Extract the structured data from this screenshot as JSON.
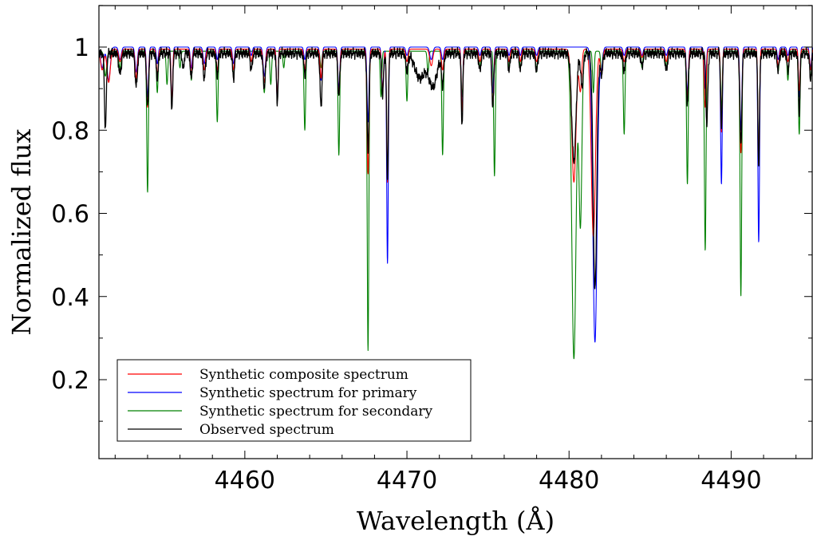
{
  "chart_data": {
    "type": "line",
    "title": "",
    "xlabel": "Wavelength (Å)",
    "ylabel": "Normalized flux",
    "xlim": [
      4451,
      4495
    ],
    "ylim": [
      0.02,
      1.11
    ],
    "x_ticks": [
      4460,
      4470,
      4480,
      4490
    ],
    "x_tick_labels": [
      "4460",
      "4470",
      "4480",
      "4490"
    ],
    "y_ticks": [
      0.2,
      0.4,
      0.6,
      0.8,
      1.0
    ],
    "y_tick_labels": [
      "0.2",
      "0.4",
      "0.6",
      "0.8",
      "1"
    ],
    "grid": false,
    "legend_position": "lower-left",
    "series": [
      {
        "name": "Synthetic composite spectrum",
        "color": "#ff0000",
        "continuum": 0.995,
        "lines": [
          [
            4451.2,
            0.05,
            0.1
          ],
          [
            4451.6,
            0.08,
            0.1
          ],
          [
            4452.3,
            0.03,
            0.08
          ],
          [
            4453.3,
            0.07,
            0.07
          ],
          [
            4454.0,
            0.14,
            0.06
          ],
          [
            4454.6,
            0.06,
            0.06
          ],
          [
            4455.5,
            0.13,
            0.05
          ],
          [
            4456.7,
            0.06,
            0.06
          ],
          [
            4457.5,
            0.05,
            0.07
          ],
          [
            4458.3,
            0.05,
            0.06
          ],
          [
            4459.3,
            0.05,
            0.06
          ],
          [
            4460.4,
            0.03,
            0.06
          ],
          [
            4461.2,
            0.08,
            0.07
          ],
          [
            4462.0,
            0.12,
            0.05
          ],
          [
            4463.7,
            0.05,
            0.06
          ],
          [
            4464.7,
            0.07,
            0.06
          ],
          [
            4465.8,
            0.11,
            0.06
          ],
          [
            4467.6,
            0.3,
            0.06
          ],
          [
            4468.5,
            0.1,
            0.06
          ],
          [
            4468.8,
            0.32,
            0.05
          ],
          [
            4470.0,
            0.03,
            0.07
          ],
          [
            4471.5,
            0.04,
            0.09
          ],
          [
            4472.2,
            0.05,
            0.07
          ],
          [
            4473.4,
            0.15,
            0.05
          ],
          [
            4474.5,
            0.03,
            0.07
          ],
          [
            4475.3,
            0.13,
            0.06
          ],
          [
            4476.3,
            0.03,
            0.06
          ],
          [
            4477.0,
            0.03,
            0.06
          ],
          [
            4478.0,
            0.03,
            0.07
          ],
          [
            4480.3,
            0.32,
            0.13
          ],
          [
            4480.7,
            0.1,
            0.08
          ],
          [
            4481.5,
            0.45,
            0.13
          ],
          [
            4482.0,
            0.06,
            0.08
          ],
          [
            4483.4,
            0.03,
            0.07
          ],
          [
            4484.5,
            0.02,
            0.07
          ],
          [
            4486.0,
            0.03,
            0.07
          ],
          [
            4487.3,
            0.12,
            0.06
          ],
          [
            4488.4,
            0.14,
            0.06
          ],
          [
            4489.4,
            0.2,
            0.05
          ],
          [
            4490.6,
            0.25,
            0.06
          ],
          [
            4491.7,
            0.28,
            0.05
          ],
          [
            4492.9,
            0.04,
            0.06
          ],
          [
            4493.5,
            0.03,
            0.06
          ],
          [
            4494.2,
            0.1,
            0.05
          ],
          [
            4494.9,
            0.05,
            0.06
          ]
        ]
      },
      {
        "name": "Synthetic spectrum for primary",
        "color": "#0000ff",
        "continuum": 1.0,
        "lines": [
          [
            4451.2,
            0.05,
            0.1
          ],
          [
            4451.6,
            0.08,
            0.1
          ],
          [
            4452.3,
            0.03,
            0.08
          ],
          [
            4453.3,
            0.06,
            0.07
          ],
          [
            4454.0,
            0.12,
            0.06
          ],
          [
            4454.6,
            0.04,
            0.06
          ],
          [
            4455.5,
            0.14,
            0.05
          ],
          [
            4456.7,
            0.05,
            0.06
          ],
          [
            4457.5,
            0.04,
            0.07
          ],
          [
            4458.3,
            0.03,
            0.06
          ],
          [
            4459.3,
            0.04,
            0.06
          ],
          [
            4460.4,
            0.02,
            0.06
          ],
          [
            4461.2,
            0.07,
            0.07
          ],
          [
            4462.0,
            0.13,
            0.05
          ],
          [
            4463.7,
            0.03,
            0.06
          ],
          [
            4464.7,
            0.08,
            0.06
          ],
          [
            4465.8,
            0.1,
            0.06
          ],
          [
            4467.6,
            0.18,
            0.06
          ],
          [
            4468.5,
            0.1,
            0.06
          ],
          [
            4468.8,
            0.52,
            0.05
          ],
          [
            4470.0,
            0.02,
            0.07
          ],
          [
            4471.5,
            0.03,
            0.09
          ],
          [
            4472.2,
            0.03,
            0.07
          ],
          [
            4473.4,
            0.15,
            0.05
          ],
          [
            4474.5,
            0.02,
            0.07
          ],
          [
            4475.3,
            0.11,
            0.06
          ],
          [
            4476.3,
            0.02,
            0.06
          ],
          [
            4477.0,
            0.02,
            0.06
          ],
          [
            4478.0,
            0.02,
            0.07
          ],
          [
            4481.6,
            0.71,
            0.13
          ],
          [
            4482.0,
            0.05,
            0.08
          ],
          [
            4483.4,
            0.02,
            0.07
          ],
          [
            4484.5,
            0.02,
            0.07
          ],
          [
            4486.0,
            0.02,
            0.07
          ],
          [
            4487.3,
            0.11,
            0.06
          ],
          [
            4488.4,
            0.1,
            0.06
          ],
          [
            4489.4,
            0.33,
            0.05
          ],
          [
            4490.6,
            0.2,
            0.06
          ],
          [
            4491.7,
            0.47,
            0.05
          ],
          [
            4492.9,
            0.03,
            0.06
          ],
          [
            4493.5,
            0.02,
            0.06
          ],
          [
            4494.2,
            0.12,
            0.05
          ],
          [
            4494.9,
            0.05,
            0.06
          ]
        ]
      },
      {
        "name": "Synthetic spectrum for secondary",
        "color": "#008000",
        "continuum": 0.99,
        "lines": [
          [
            4451.4,
            0.06,
            0.08
          ],
          [
            4452.3,
            0.04,
            0.07
          ],
          [
            4453.3,
            0.07,
            0.06
          ],
          [
            4454.0,
            0.34,
            0.05
          ],
          [
            4454.6,
            0.1,
            0.05
          ],
          [
            4455.2,
            0.08,
            0.05
          ],
          [
            4456.0,
            0.04,
            0.05
          ],
          [
            4456.7,
            0.07,
            0.05
          ],
          [
            4458.3,
            0.17,
            0.05
          ],
          [
            4459.3,
            0.06,
            0.05
          ],
          [
            4461.2,
            0.1,
            0.06
          ],
          [
            4461.6,
            0.08,
            0.05
          ],
          [
            4462.4,
            0.04,
            0.05
          ],
          [
            4463.7,
            0.19,
            0.05
          ],
          [
            4464.7,
            0.04,
            0.05
          ],
          [
            4465.8,
            0.25,
            0.05
          ],
          [
            4467.6,
            0.72,
            0.05
          ],
          [
            4468.4,
            0.11,
            0.05
          ],
          [
            4470.0,
            0.12,
            0.05
          ],
          [
            4471.3,
            0.05,
            0.05
          ],
          [
            4472.2,
            0.25,
            0.05
          ],
          [
            4473.4,
            0.11,
            0.05
          ],
          [
            4474.5,
            0.04,
            0.05
          ],
          [
            4475.4,
            0.3,
            0.05
          ],
          [
            4476.3,
            0.04,
            0.05
          ],
          [
            4477.0,
            0.04,
            0.05
          ],
          [
            4478.0,
            0.05,
            0.05
          ],
          [
            4480.3,
            0.74,
            0.13
          ],
          [
            4480.7,
            0.42,
            0.09
          ],
          [
            4481.5,
            0.1,
            0.05
          ],
          [
            4482.0,
            0.05,
            0.05
          ],
          [
            4483.4,
            0.2,
            0.05
          ],
          [
            4484.5,
            0.04,
            0.05
          ],
          [
            4486.0,
            0.04,
            0.05
          ],
          [
            4487.3,
            0.32,
            0.05
          ],
          [
            4488.4,
            0.48,
            0.05
          ],
          [
            4489.4,
            0.14,
            0.05
          ],
          [
            4490.6,
            0.59,
            0.05
          ],
          [
            4491.7,
            0.26,
            0.05
          ],
          [
            4492.9,
            0.05,
            0.05
          ],
          [
            4493.5,
            0.07,
            0.05
          ],
          [
            4494.2,
            0.2,
            0.05
          ],
          [
            4494.9,
            0.07,
            0.05
          ]
        ]
      },
      {
        "name": "Observed spectrum",
        "color": "#000000",
        "continuum": 0.985,
        "lines": [
          [
            4451.4,
            0.18,
            0.06
          ],
          [
            4452.3,
            0.05,
            0.08
          ],
          [
            4453.3,
            0.08,
            0.07
          ],
          [
            4454.0,
            0.13,
            0.06
          ],
          [
            4454.6,
            0.06,
            0.06
          ],
          [
            4455.5,
            0.14,
            0.05
          ],
          [
            4456.2,
            0.04,
            0.05
          ],
          [
            4456.7,
            0.06,
            0.06
          ],
          [
            4457.5,
            0.06,
            0.07
          ],
          [
            4458.3,
            0.05,
            0.06
          ],
          [
            4459.3,
            0.06,
            0.06
          ],
          [
            4460.4,
            0.04,
            0.06
          ],
          [
            4461.2,
            0.08,
            0.07
          ],
          [
            4462.0,
            0.12,
            0.05
          ],
          [
            4463.7,
            0.05,
            0.06
          ],
          [
            4464.7,
            0.13,
            0.06
          ],
          [
            4465.8,
            0.1,
            0.06
          ],
          [
            4467.6,
            0.23,
            0.06
          ],
          [
            4468.5,
            0.1,
            0.06
          ],
          [
            4468.8,
            0.3,
            0.05
          ],
          [
            4470.0,
            0.04,
            0.07
          ],
          [
            4470.8,
            0.06,
            0.3
          ],
          [
            4471.6,
            0.08,
            0.25
          ],
          [
            4472.2,
            0.07,
            0.07
          ],
          [
            4473.4,
            0.17,
            0.05
          ],
          [
            4474.5,
            0.04,
            0.07
          ],
          [
            4475.3,
            0.13,
            0.06
          ],
          [
            4476.3,
            0.04,
            0.06
          ],
          [
            4477.0,
            0.04,
            0.06
          ],
          [
            4478.0,
            0.04,
            0.07
          ],
          [
            4480.3,
            0.26,
            0.13
          ],
          [
            4480.8,
            0.08,
            0.08
          ],
          [
            4481.6,
            0.57,
            0.11
          ],
          [
            4482.0,
            0.05,
            0.08
          ],
          [
            4483.4,
            0.04,
            0.07
          ],
          [
            4484.5,
            0.03,
            0.07
          ],
          [
            4486.0,
            0.04,
            0.07
          ],
          [
            4487.3,
            0.12,
            0.06
          ],
          [
            4488.5,
            0.17,
            0.06
          ],
          [
            4489.4,
            0.18,
            0.05
          ],
          [
            4490.6,
            0.22,
            0.06
          ],
          [
            4491.7,
            0.27,
            0.05
          ],
          [
            4492.9,
            0.04,
            0.06
          ],
          [
            4493.5,
            0.04,
            0.06
          ],
          [
            4494.2,
            0.14,
            0.05
          ],
          [
            4494.9,
            0.06,
            0.06
          ]
        ]
      }
    ]
  }
}
